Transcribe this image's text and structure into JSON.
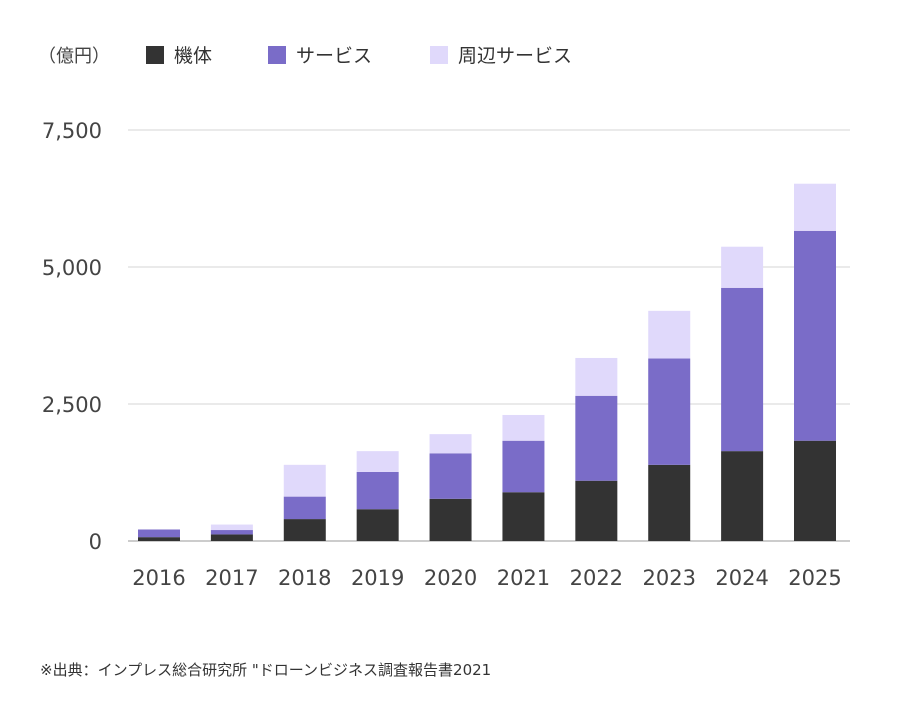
{
  "chart_data": {
    "type": "bar",
    "stacked": true,
    "unit_label": "（億円）",
    "categories": [
      "2016",
      "2017",
      "2018",
      "2019",
      "2020",
      "2021",
      "2022",
      "2023",
      "2024",
      "2025"
    ],
    "series": [
      {
        "name": "機体",
        "color": "#333333",
        "values": [
          70,
          120,
          400,
          580,
          770,
          890,
          1100,
          1390,
          1640,
          1830
        ]
      },
      {
        "name": "サービス",
        "color": "#7a6cc8",
        "values": [
          140,
          80,
          410,
          680,
          830,
          940,
          1550,
          1940,
          2980,
          3830
        ]
      },
      {
        "name": "周辺サービス",
        "color": "#e0d9fb",
        "values": [
          0,
          100,
          580,
          380,
          350,
          470,
          690,
          870,
          750,
          860
        ]
      }
    ],
    "yticks": [
      0,
      2500,
      5000,
      7500
    ],
    "ytick_labels": [
      "0",
      "2,500",
      "5,000",
      "7,500"
    ],
    "ylim": [
      0,
      7500
    ],
    "grid": true,
    "legend_position": "top-left"
  },
  "source_note": "※出典：インプレス総合研究所 \"ドローンビジネス調査報告書2021"
}
